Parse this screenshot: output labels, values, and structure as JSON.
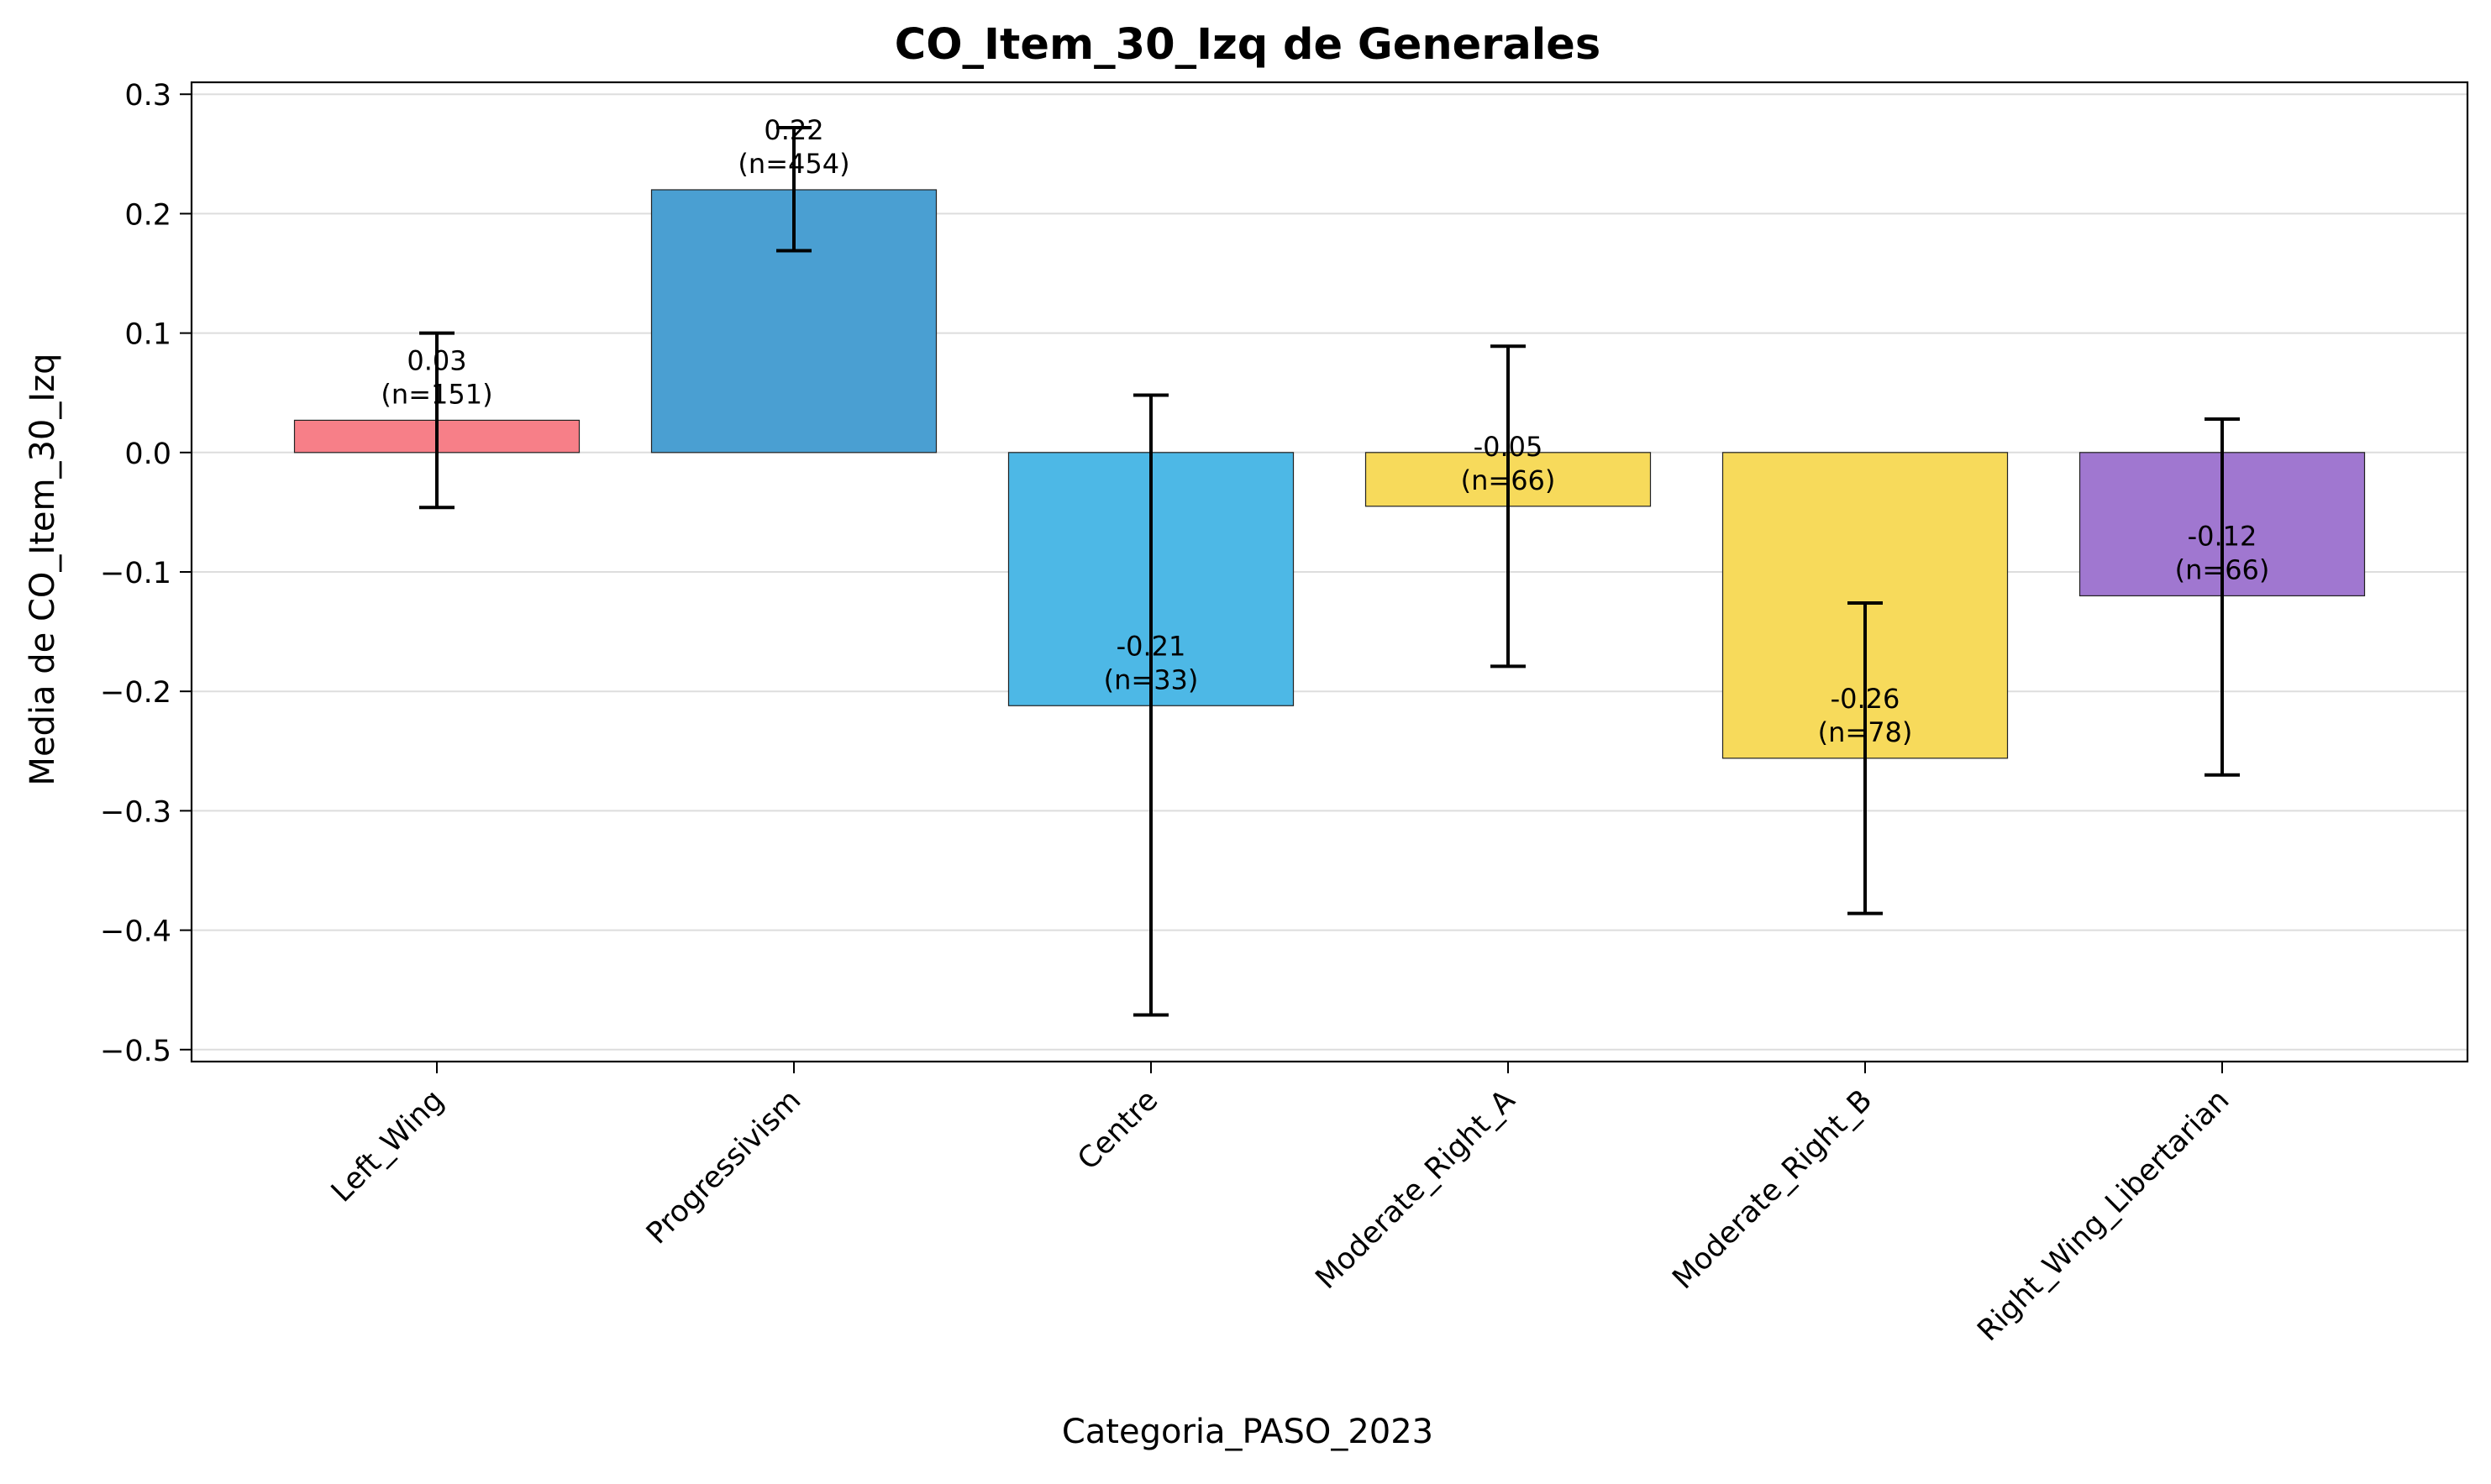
{
  "chart_data": {
    "type": "bar",
    "title": "CO_Item_30_Izq de Generales",
    "xlabel": "Categoria_PASO_2023",
    "ylabel": "Media de CO_Item_30_Izq",
    "categories": [
      "Left_Wing",
      "Progressivism",
      "Centre",
      "Moderate_Right_A",
      "Moderate_Right_B",
      "Right_Wing_Libertarian"
    ],
    "values": [
      0.027,
      0.22,
      -0.212,
      -0.045,
      -0.256,
      -0.12
    ],
    "error_low": [
      -0.046,
      0.169,
      -0.471,
      -0.179,
      -0.386,
      -0.27
    ],
    "error_high": [
      0.1,
      0.272,
      0.048,
      0.089,
      -0.126,
      0.028
    ],
    "labels": [
      "0.03\n(n=151)",
      "0.22\n(n=454)",
      "-0.21\n(n=33)",
      "-0.05\n(n=66)",
      "-0.26\n(n=78)",
      "-0.12\n(n=66)"
    ],
    "colors": [
      "#f77f88",
      "#4a9fd2",
      "#4db8e6",
      "#f7da5b",
      "#f7da5b",
      "#a077d0"
    ],
    "yticks": [
      0.3,
      0.2,
      0.1,
      0.0,
      -0.1,
      -0.2,
      -0.3,
      -0.4,
      -0.5
    ],
    "ytick_labels": [
      "0.3",
      "0.2",
      "0.1",
      "0.0",
      "−0.1",
      "−0.2",
      "−0.3",
      "−0.4",
      "−0.5"
    ],
    "ylim": [
      -0.51,
      0.31
    ],
    "grid": "y"
  }
}
